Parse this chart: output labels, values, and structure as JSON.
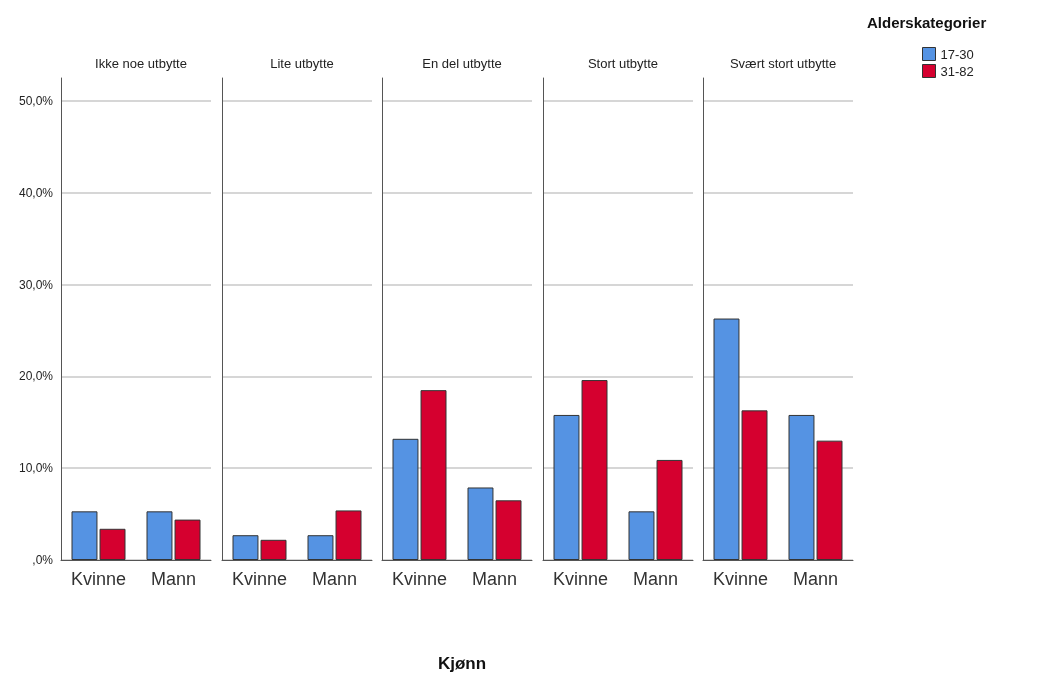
{
  "chart_data": [
    {
      "type": "bar",
      "title": "Ikke noe utbytte",
      "categories": [
        "Kvinne",
        "Mann"
      ],
      "series": [
        {
          "color": "#5593e3",
          "values": [
            5.3,
            5.3
          ]
        },
        {
          "color": "#d5002f",
          "values": [
            3.4,
            4.4
          ]
        }
      ],
      "ylim": [
        0,
        52.5
      ],
      "yticks": [
        {
          "value": 0,
          "label": ",0%"
        },
        {
          "value": 10,
          "label": "10,0%"
        },
        {
          "value": 20,
          "label": "20,0%"
        },
        {
          "value": 30,
          "label": "30,0%"
        },
        {
          "value": 40,
          "label": "40,0%"
        },
        {
          "value": 50,
          "label": "50,0%"
        }
      ],
      "grid": "y"
    },
    {
      "type": "bar",
      "title": "Lite utbytte",
      "categories": [
        "Kvinne",
        "Mann"
      ],
      "series": [
        {
          "color": "#5593e3",
          "values": [
            2.7,
            2.7
          ]
        },
        {
          "color": "#d5002f",
          "values": [
            2.2,
            5.4
          ]
        }
      ],
      "ylim": [
        0,
        52.5
      ],
      "yticks": [
        0,
        10,
        20,
        30,
        40,
        50
      ],
      "grid": "y",
      "tick_labels": "x"
    },
    {
      "type": "bar",
      "title": "En del utbytte",
      "xlabel": "Kjønn",
      "categories": [
        "Kvinne",
        "Mann"
      ],
      "series": [
        {
          "color": "#5593e3",
          "values": [
            13.2,
            7.9
          ]
        },
        {
          "color": "#d5002f",
          "values": [
            18.5,
            6.5
          ]
        }
      ],
      "ylim": [
        0,
        52.5
      ],
      "yticks": [
        0,
        10,
        20,
        30,
        40,
        50
      ],
      "grid": "y",
      "tick_labels": "x"
    },
    {
      "type": "bar",
      "title": "Stort utbytte",
      "categories": [
        "Kvinne",
        "Mann"
      ],
      "series": [
        {
          "color": "#5593e3",
          "values": [
            15.8,
            5.3
          ]
        },
        {
          "color": "#d5002f",
          "values": [
            19.6,
            10.9
          ]
        }
      ],
      "ylim": [
        0,
        52.5
      ],
      "yticks": [
        0,
        10,
        20,
        30,
        40,
        50
      ],
      "grid": "y",
      "tick_labels": "x"
    },
    {
      "type": "bar",
      "title": "Svært stort utbytte",
      "legend_title": "Alderskategorier",
      "legend": "top right",
      "categories": [
        "Kvinne",
        "Mann"
      ],
      "series": [
        {
          "name": "17-30",
          "color": "#5593e3",
          "values": [
            26.3,
            15.8
          ]
        },
        {
          "name": "31-82",
          "color": "#d5002f",
          "values": [
            16.3,
            13.0
          ]
        }
      ],
      "ylim": [
        0,
        52.5
      ],
      "yticks": [
        0,
        10,
        20,
        30,
        40,
        50
      ],
      "grid": "y",
      "tick_labels": "x"
    }
  ]
}
